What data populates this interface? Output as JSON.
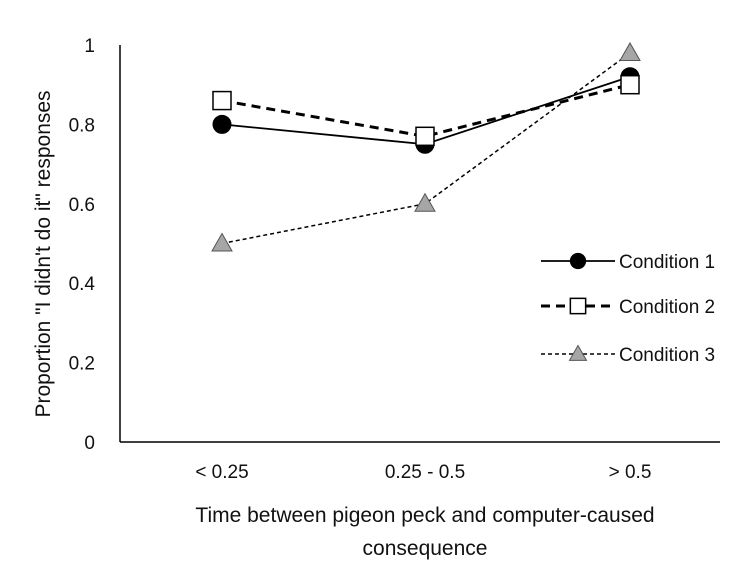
{
  "chart_data": {
    "type": "line",
    "categories": [
      "< 0.25",
      "0.25 - 0.5",
      "> 0.5"
    ],
    "series": [
      {
        "name": "Condition 1",
        "values": [
          0.8,
          0.75,
          0.92
        ],
        "marker": "circle",
        "line": "solid",
        "color": "#000000"
      },
      {
        "name": "Condition 2",
        "values": [
          0.86,
          0.77,
          0.9
        ],
        "marker": "square",
        "line": "dashed",
        "color": "#000000"
      },
      {
        "name": "Condition 3",
        "values": [
          0.5,
          0.6,
          0.98
        ],
        "marker": "triangle",
        "line": "dotted",
        "color": "#a6a6a6"
      }
    ],
    "xlabel_line1": "Time between pigeon peck and computer-caused",
    "xlabel_line2": "consequence",
    "ylabel": "Proportion \"I didn't do it\" responses",
    "ylim": [
      0,
      1
    ],
    "yticks": [
      "0",
      "0.2",
      "0.4",
      "0.6",
      "0.8",
      "1"
    ],
    "ytick_values": [
      0,
      0.2,
      0.4,
      0.6,
      0.8,
      1
    ],
    "grid": false,
    "legend_position": "right"
  }
}
